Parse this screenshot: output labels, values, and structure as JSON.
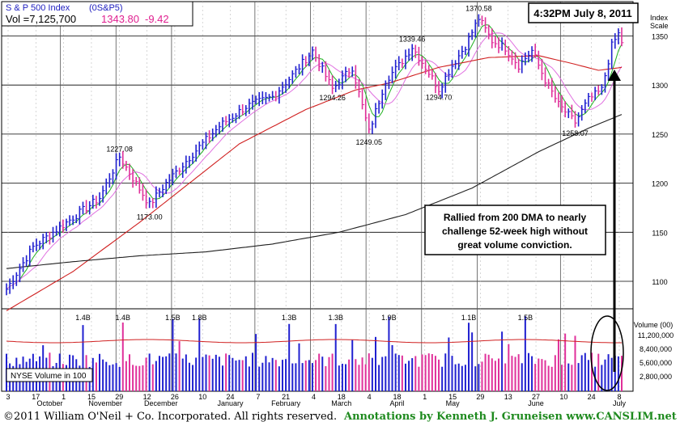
{
  "header": {
    "index_name": "S & P 500 Index",
    "symbol": "(0S&P5)",
    "vol_label": "Vol =7,125,700",
    "price": "1343.80",
    "change": "-9.42",
    "timestamp": "4:32PM  July 8, 2011"
  },
  "scale_title": [
    "Index",
    "Scale"
  ],
  "footer": {
    "copyright": "©2011 William O'Neil + Co. Incorporated. All rights reserved.",
    "annotations": "Annotations by Kenneth J. Gruneisen  www.CANSLIM.net"
  },
  "callout": {
    "lines": [
      "Rallied from 200 DMA to nearly",
      "challenge 52-week high without",
      "great volume conviction."
    ]
  },
  "volume_box": {
    "label": "NYSE Volume in 100"
  },
  "colors": {
    "up": "#2020d0",
    "down": "#e0309a",
    "ma50": "#d02020",
    "ma200": "#202020",
    "ma_short": "#20b020",
    "ma_mid": "#e070e0",
    "price_header": "#e02090"
  },
  "chart_data": {
    "type": "line",
    "price_axis": {
      "ticks": [
        1100,
        1150,
        1200,
        1250,
        1300,
        1350
      ],
      "ylim": [
        1072,
        1385
      ],
      "scale_title": "Index Scale"
    },
    "volume_axis": {
      "title": "Volume (00)",
      "ticks": [
        "11,200,000",
        "8,400,000",
        "5,600,000",
        "2,800,000"
      ]
    },
    "x_ticks": [
      "3",
      "17",
      "1",
      "15",
      "29",
      "12",
      "26",
      "10",
      "24",
      "7",
      "21",
      "4",
      "18",
      "4",
      "18",
      "1",
      "15",
      "29",
      "13",
      "27",
      "10",
      "24",
      "8"
    ],
    "x_months": [
      "October",
      "November",
      "December",
      "January",
      "February",
      "March",
      "April",
      "May",
      "June",
      "July"
    ],
    "price_labels": [
      {
        "text": "1227.08",
        "value": 1227.08,
        "index": 34
      },
      {
        "text": "1173.00",
        "value": 1173.0,
        "index": 43
      },
      {
        "text": "1294.26",
        "value": 1294.26,
        "index": 98
      },
      {
        "text": "1249.05",
        "value": 1249.05,
        "index": 109
      },
      {
        "text": "1339.46",
        "value": 1339.46,
        "index": 122
      },
      {
        "text": "1294.70",
        "value": 1294.7,
        "index": 130
      },
      {
        "text": "1370.58",
        "value": 1370.58,
        "index": 142
      },
      {
        "text": "1258.07",
        "value": 1258.07,
        "index": 171
      }
    ],
    "volume_labels": [
      {
        "text": "1.4B",
        "index": 23
      },
      {
        "text": "1.4B",
        "index": 35
      },
      {
        "text": "1.5B",
        "index": 50
      },
      {
        "text": "1.8B",
        "index": 58
      },
      {
        "text": "1.3B",
        "index": 85
      },
      {
        "text": "1.3B",
        "index": 99
      },
      {
        "text": "1.9B",
        "index": 115
      },
      {
        "text": "1.1B",
        "index": 139
      },
      {
        "text": "1.5B",
        "index": 156
      }
    ],
    "key_points": [
      [
        0,
        1092
      ],
      [
        8,
        1135
      ],
      [
        18,
        1160
      ],
      [
        28,
        1185
      ],
      [
        34,
        1227
      ],
      [
        38,
        1205
      ],
      [
        43,
        1178
      ],
      [
        48,
        1200
      ],
      [
        56,
        1230
      ],
      [
        64,
        1258
      ],
      [
        72,
        1278
      ],
      [
        80,
        1288
      ],
      [
        86,
        1310
      ],
      [
        92,
        1335
      ],
      [
        98,
        1296
      ],
      [
        104,
        1318
      ],
      [
        109,
        1252
      ],
      [
        114,
        1305
      ],
      [
        118,
        1320
      ],
      [
        122,
        1339
      ],
      [
        126,
        1318
      ],
      [
        130,
        1296
      ],
      [
        134,
        1320
      ],
      [
        138,
        1340
      ],
      [
        142,
        1368
      ],
      [
        146,
        1345
      ],
      [
        150,
        1338
      ],
      [
        154,
        1320
      ],
      [
        158,
        1335
      ],
      [
        162,
        1305
      ],
      [
        166,
        1280
      ],
      [
        171,
        1262
      ],
      [
        175,
        1285
      ],
      [
        179,
        1295
      ],
      [
        182,
        1340
      ],
      [
        184,
        1352
      ],
      [
        185,
        1344
      ]
    ],
    "n_bars": 186,
    "ma200_points": [
      [
        0,
        1113
      ],
      [
        20,
        1120
      ],
      [
        40,
        1126
      ],
      [
        60,
        1130
      ],
      [
        80,
        1138
      ],
      [
        100,
        1150
      ],
      [
        120,
        1168
      ],
      [
        140,
        1195
      ],
      [
        160,
        1232
      ],
      [
        175,
        1256
      ],
      [
        185,
        1270
      ]
    ],
    "ma50_points": [
      [
        0,
        1070
      ],
      [
        20,
        1110
      ],
      [
        40,
        1160
      ],
      [
        55,
        1200
      ],
      [
        70,
        1240
      ],
      [
        90,
        1275
      ],
      [
        105,
        1295
      ],
      [
        115,
        1302
      ],
      [
        130,
        1318
      ],
      [
        145,
        1328
      ],
      [
        160,
        1330
      ],
      [
        170,
        1322
      ],
      [
        178,
        1315
      ],
      [
        185,
        1318
      ]
    ]
  }
}
